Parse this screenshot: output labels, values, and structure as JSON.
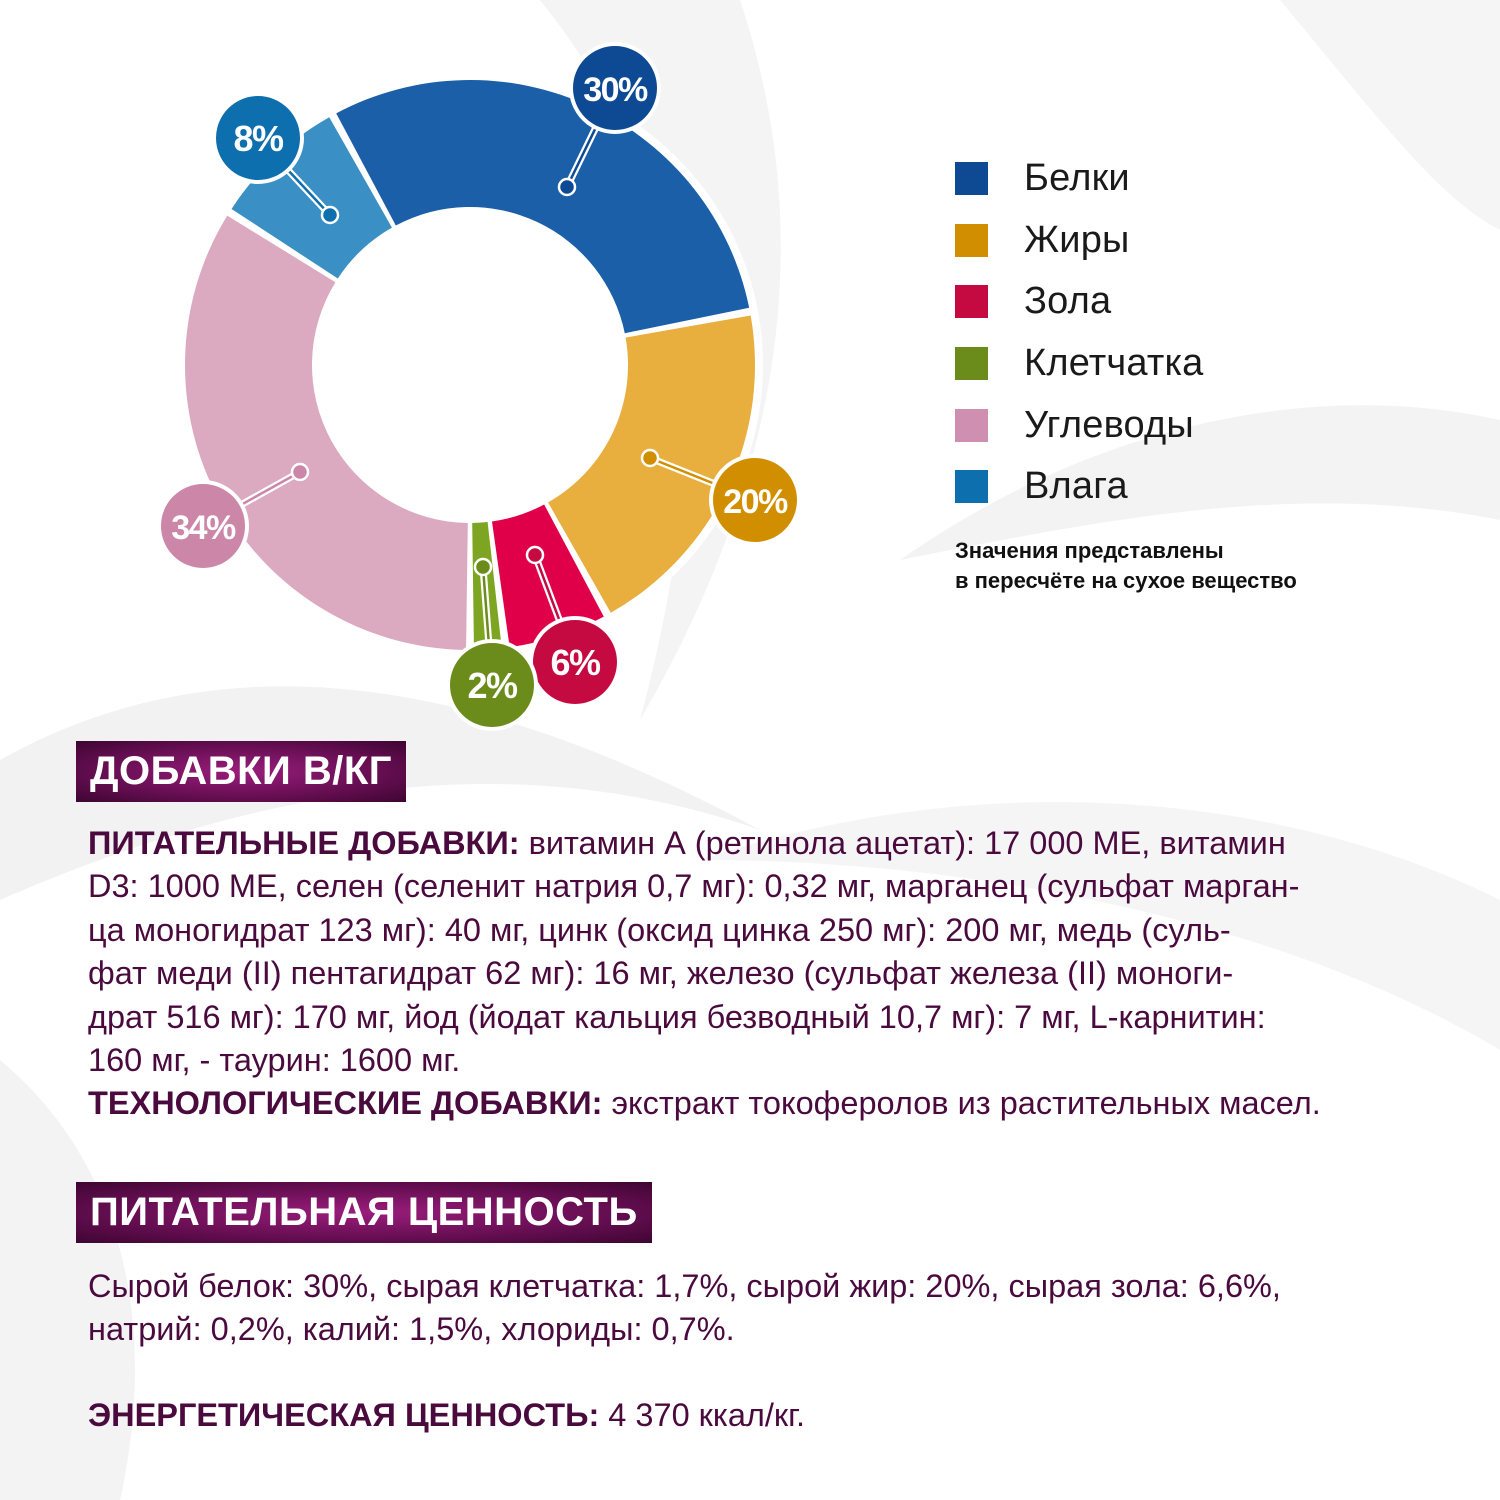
{
  "colors": {
    "protein": "#1b5fa8",
    "fat": "#e8ae3e",
    "ash": "#e0004a",
    "fiber": "#7ea521",
    "carbs": "#dba9c0",
    "moisture": "#3a8fc4",
    "heading_text": "#4a0a3e",
    "heading_bg": "#7a1466"
  },
  "chart_data": {
    "type": "pie",
    "variant": "donut",
    "title": "",
    "categories": [
      "Белки",
      "Жиры",
      "Зола",
      "Клетчатка",
      "Углеводы",
      "Влага"
    ],
    "values": [
      30,
      20,
      6,
      2,
      34,
      8
    ],
    "labels": [
      "30%",
      "20%",
      "6%",
      "2%",
      "34%",
      "8%"
    ],
    "segment_colors": [
      "#1b5fa8",
      "#e8ae3e",
      "#e0004a",
      "#7ea521",
      "#dba9c0",
      "#3a8fc4"
    ],
    "badge_colors": [
      "#0d4a93",
      "#d18f00",
      "#c50a42",
      "#6b8b1b",
      "#cb86a8",
      "#0e6fae"
    ],
    "legend_position": "right",
    "note": "Значения представлены в пересчёте на сухое вещество"
  },
  "legend": {
    "items": [
      {
        "label": "Белки",
        "color": "#0d4a93"
      },
      {
        "label": "Жиры",
        "color": "#d18f00"
      },
      {
        "label": "Зола",
        "color": "#c50a42"
      },
      {
        "label": "Клетчатка",
        "color": "#6b8b1b"
      },
      {
        "label": "Углеводы",
        "color": "#cf8fb0"
      },
      {
        "label": "Влага",
        "color": "#0e6fae"
      }
    ],
    "note_line1": "Значения представлены",
    "note_line2": "в пересчёте на сухое вещество"
  },
  "additives": {
    "heading": "ДОБАВКИ В/КГ",
    "nutritional_label": "ПИТАТЕЛЬНЫЕ ДОБАВКИ:",
    "lines": [
      " витамин А (ретинола ацетат): 17 000 МЕ, витамин",
      "D3: 1000 МЕ, селен (селенит натрия 0,7 мг): 0,32 мг, марганец (сульфат марган-",
      "ца моногидрат 123 мг): 40 мг, цинк (оксид цинка 250 мг): 200 мг, медь (суль-",
      "фат меди (II) пентагидрат 62 мг): 16 мг, железо (сульфат железа (II) моноги-",
      "драт 516 мг): 170 мг, йод (йодат кальция безводный 10,7 мг): 7 мг, L-карнитин:",
      "160 мг, - таурин: 1600 мг."
    ],
    "technological_label": "ТЕХНОЛОГИЧЕСКИЕ ДОБАВКИ:",
    "technological_text": " экстракт токоферолов из растительных масел."
  },
  "nutrition": {
    "heading": "ПИТАТЕЛЬНАЯ ЦЕННОСТЬ",
    "line1": "Сырой белок: 30%, сырая клетчатка: 1,7%, сырой жир: 20%, сырая зола: 6,6%,",
    "line2": "натрий: 0,2%, калий: 1,5%, хлориды: 0,7%.",
    "energy_label": "ЭНЕРГЕТИЧЕСКАЯ ЦЕННОСТЬ:",
    "energy_value": " 4 370 ккал/кг."
  }
}
